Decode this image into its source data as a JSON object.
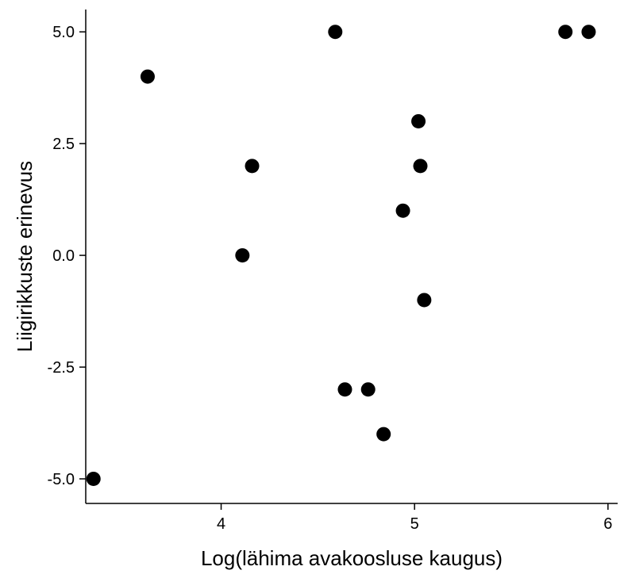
{
  "chart_data": {
    "type": "scatter",
    "xlabel": "Log(lähima avakoosluse kaugus)",
    "ylabel": "Liigirikkuste erinevus",
    "xlim": [
      3.3,
      6.05
    ],
    "ylim": [
      -5.55,
      5.5
    ],
    "x_ticks": [
      4,
      5,
      6
    ],
    "x_tick_labels": [
      "4",
      "5",
      "6"
    ],
    "y_ticks": [
      5.0,
      2.5,
      0.0,
      -2.5,
      -5.0
    ],
    "y_tick_labels": [
      "5.0",
      "2.5",
      "0.0",
      "-2.5",
      "-5.0"
    ],
    "grid": false,
    "point_color": "#000000",
    "series": [
      {
        "points": [
          {
            "x": 3.34,
            "y": -5
          },
          {
            "x": 3.62,
            "y": 4
          },
          {
            "x": 4.11,
            "y": 0
          },
          {
            "x": 4.16,
            "y": 2
          },
          {
            "x": 4.59,
            "y": 5
          },
          {
            "x": 4.64,
            "y": -3
          },
          {
            "x": 4.76,
            "y": -3
          },
          {
            "x": 4.84,
            "y": -4
          },
          {
            "x": 4.94,
            "y": 1
          },
          {
            "x": 5.02,
            "y": 3
          },
          {
            "x": 5.03,
            "y": 2
          },
          {
            "x": 5.05,
            "y": -1
          },
          {
            "x": 5.78,
            "y": 5
          },
          {
            "x": 5.9,
            "y": 5
          }
        ]
      }
    ]
  }
}
